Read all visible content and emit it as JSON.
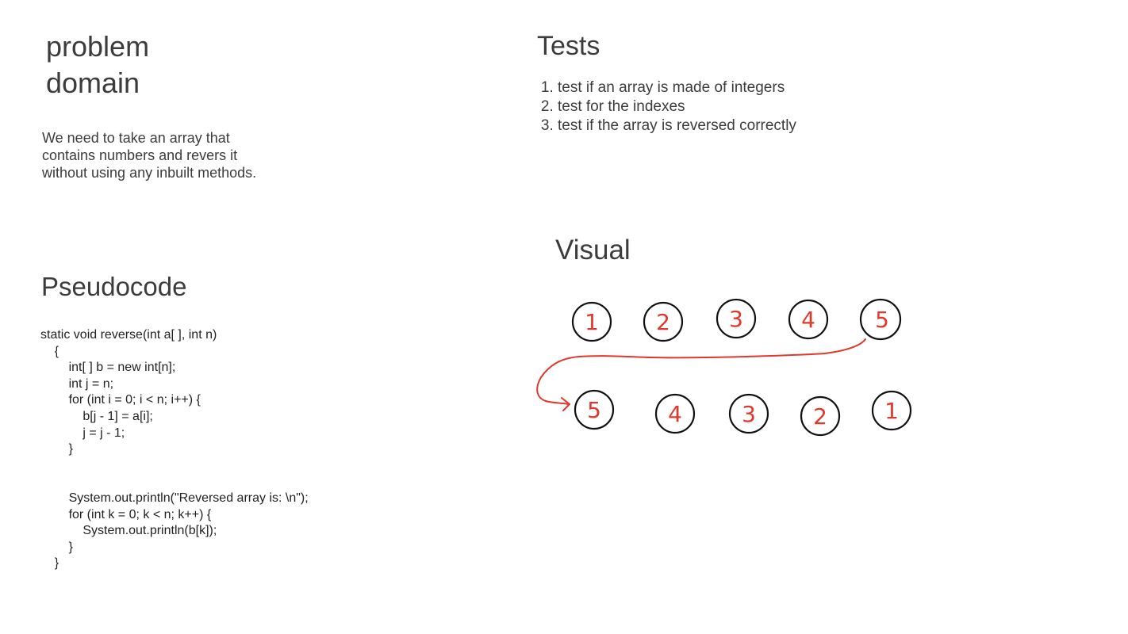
{
  "problem_domain": {
    "title": "problem\ndomain",
    "description": "We need to take an array that\ncontains numbers and revers it\nwithout using any inbuilt methods."
  },
  "tests": {
    "title": "Tests",
    "items": [
      "test if an array is made of integers",
      "test for the indexes",
      "test if the array is reversed correctly"
    ]
  },
  "pseudocode": {
    "title": "Pseudocode",
    "lines": [
      "static void reverse(int a[ ], int n)",
      "    {",
      "        int[ ] b = new int[n];",
      "        int j = n;",
      "        for (int i = 0; i < n; i++) {",
      "            b[j - 1] = a[i];",
      "            j = j - 1;",
      "        }",
      "",
      "",
      "        System.out.println(\"Reversed array is: \\n\");",
      "        for (int k = 0; k < n; k++) {",
      "            System.out.println(b[k]);",
      "        }",
      "    }"
    ]
  },
  "visual": {
    "title": "Visual",
    "original_array": [
      "1",
      "2",
      "3",
      "4",
      "5"
    ],
    "reversed_array": [
      "5",
      "4",
      "3",
      "2",
      "1"
    ],
    "circle_color": "#111111",
    "digit_color": "#e0392b",
    "arrow_color": "#e0392b"
  }
}
